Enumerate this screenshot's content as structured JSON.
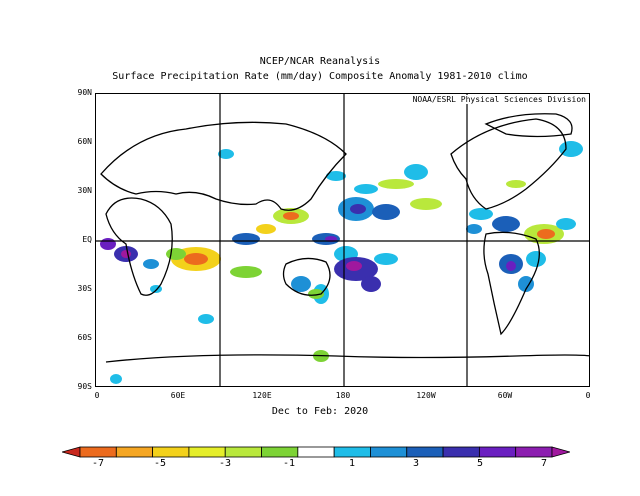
{
  "title": "NCEP/NCAR Reanalysis",
  "subtitle": "Surface Precipitation Rate (mm/day) Composite Anomaly 1981-2010 climo",
  "credit": "NOAA/ESRL Physical Sciences Division",
  "period": "Dec to Feb: 2020",
  "lat_labels": [
    "90N",
    "60N",
    "30N",
    "EQ",
    "30S",
    "60S",
    "90S"
  ],
  "lon_labels": [
    "0",
    "60E",
    "120E",
    "180",
    "120W",
    "60W",
    "0"
  ],
  "colorbar": {
    "labels": [
      "-7",
      "-5",
      "-3",
      "-1",
      "1",
      "3",
      "5",
      "7"
    ],
    "colors": [
      "#c8281e",
      "#ec6b1e",
      "#f5a623",
      "#f3d11b",
      "#e5ee2a",
      "#b9e83c",
      "#7dd335",
      "#ffffff",
      "#1fbde8",
      "#1e90d6",
      "#1b5fb8",
      "#3a2fae",
      "#6a1fc0",
      "#8c1eb0",
      "#a0189e"
    ]
  }
}
